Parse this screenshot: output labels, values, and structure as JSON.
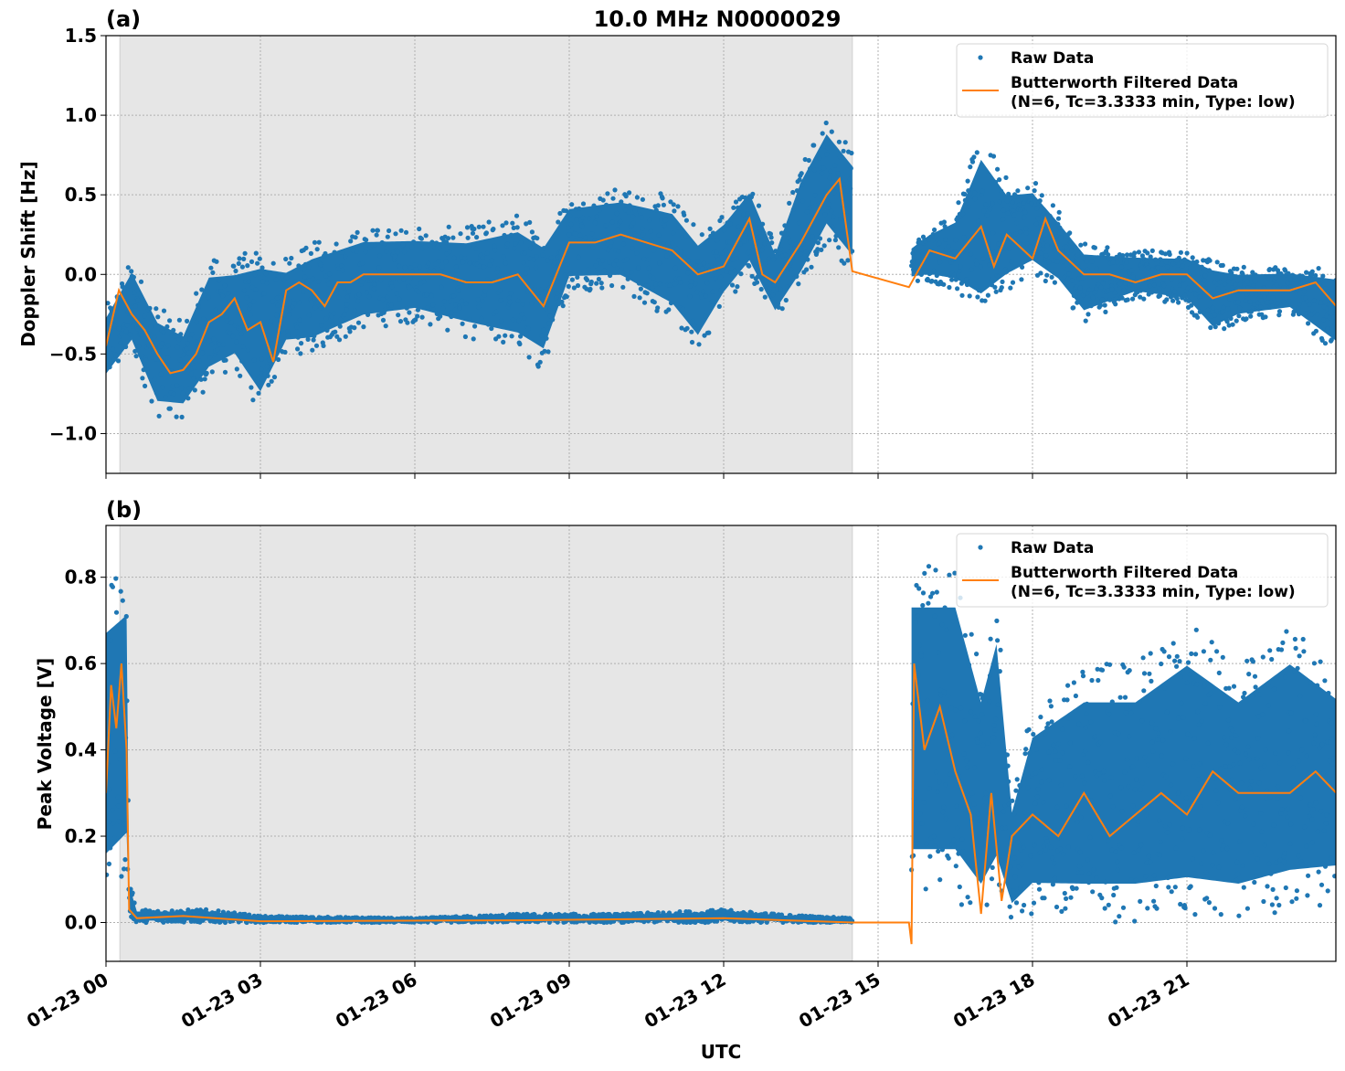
{
  "title": "10.0 MHz N0000029",
  "chart_data": [
    {
      "type": "scatter",
      "panel_label": "(a)",
      "title": "10.0 MHz N0000029",
      "xlabel": "",
      "ylabel": "Doppler Shift [Hz]",
      "x_units": "hours UTC on 01-23",
      "xlim": [
        0,
        23.9
      ],
      "ylim": [
        -1.25,
        1.5
      ],
      "yticks": [
        -1.0,
        -0.5,
        0.0,
        0.5,
        1.0,
        1.5
      ],
      "ytick_labels": [
        "−1.0",
        "−0.5",
        "0.0",
        "0.5",
        "1.0",
        "1.5"
      ],
      "grid": true,
      "legend_position": "top-right",
      "shaded_region_hours": [
        0.27,
        14.5
      ],
      "raw_data": {
        "name": "Raw Data",
        "color": "#1f77b4",
        "segments": [
          {
            "t": [
              0,
              0.5,
              1,
              1.5,
              2,
              2.5,
              3,
              3.5,
              4,
              5,
              6,
              7,
              8,
              8.5,
              9,
              10,
              11,
              11.5,
              12,
              12.5,
              13,
              13.5,
              14,
              14.5
            ],
            "lower": [
              -0.7,
              -0.5,
              -0.9,
              -0.9,
              -0.7,
              -0.6,
              -0.9,
              -0.5,
              -0.5,
              -0.35,
              -0.3,
              -0.4,
              -0.5,
              -0.6,
              -0.1,
              -0.1,
              -0.3,
              -0.5,
              -0.2,
              0.0,
              -0.3,
              -0.1,
              0.2,
              0.0
            ],
            "upper": [
              -0.2,
              0.1,
              -0.2,
              -0.3,
              0.1,
              0.1,
              0.2,
              0.1,
              0.2,
              0.3,
              0.3,
              0.3,
              0.4,
              0.3,
              0.5,
              0.55,
              0.5,
              0.3,
              0.4,
              0.6,
              0.2,
              0.7,
              1.0,
              0.8
            ]
          },
          {
            "t": [
              15.65,
              16,
              16.5,
              17,
              17.5,
              18,
              18.5,
              19,
              20,
              21,
              21.5,
              22,
              23,
              23.9
            ],
            "lower": [
              -0.05,
              -0.05,
              -0.1,
              -0.3,
              -0.1,
              0.0,
              -0.1,
              -0.3,
              -0.15,
              -0.2,
              -0.4,
              -0.3,
              -0.25,
              -0.5
            ],
            "upper": [
              0.2,
              0.3,
              0.4,
              0.9,
              0.6,
              0.6,
              0.4,
              0.2,
              0.15,
              0.15,
              0.1,
              0.05,
              0.05,
              0.05
            ]
          }
        ]
      },
      "filtered": {
        "name": "Butterworth Filtered Data\n(N=6, Tc=3.3333 min, Type: low)",
        "color": "#ff7f0e",
        "t": [
          0,
          0.25,
          0.5,
          0.75,
          1,
          1.25,
          1.5,
          1.75,
          2,
          2.25,
          2.5,
          2.75,
          3,
          3.25,
          3.5,
          3.75,
          4,
          4.25,
          4.5,
          4.75,
          5,
          5.5,
          6,
          6.5,
          7,
          7.5,
          8,
          8.5,
          9,
          9.5,
          10,
          10.5,
          11,
          11.5,
          12,
          12.5,
          12.75,
          13,
          13.5,
          14,
          14.25,
          14.5,
          15.6,
          16,
          16.5,
          17,
          17.25,
          17.5,
          18,
          18.25,
          18.5,
          19,
          19.5,
          20,
          20.5,
          21,
          21.5,
          22,
          22.5,
          23,
          23.5,
          23.9
        ],
        "v": [
          -0.45,
          -0.1,
          -0.25,
          -0.35,
          -0.5,
          -0.62,
          -0.6,
          -0.5,
          -0.3,
          -0.25,
          -0.15,
          -0.35,
          -0.3,
          -0.55,
          -0.1,
          -0.05,
          -0.1,
          -0.2,
          -0.05,
          -0.05,
          0.0,
          0.0,
          0.0,
          0.0,
          -0.05,
          -0.05,
          0.0,
          -0.2,
          0.2,
          0.2,
          0.25,
          0.2,
          0.15,
          0.0,
          0.05,
          0.35,
          0.0,
          -0.05,
          0.2,
          0.5,
          0.6,
          0.02,
          -0.08,
          0.15,
          0.1,
          0.3,
          0.05,
          0.25,
          0.1,
          0.35,
          0.15,
          0.0,
          0.0,
          -0.05,
          0.0,
          0.0,
          -0.15,
          -0.1,
          -0.1,
          -0.1,
          -0.05,
          -0.2
        ]
      }
    },
    {
      "type": "scatter",
      "panel_label": "(b)",
      "xlabel": "UTC",
      "ylabel": "Peak Voltage [V]",
      "x_units": "hours UTC on 01-23",
      "xlim": [
        0,
        23.9
      ],
      "ylim": [
        -0.09,
        0.92
      ],
      "yticks": [
        0.0,
        0.2,
        0.4,
        0.6,
        0.8
      ],
      "ytick_labels": [
        "0.0",
        "0.2",
        "0.4",
        "0.6",
        "0.8"
      ],
      "xticks": [
        0,
        3,
        6,
        9,
        12,
        15,
        18,
        21
      ],
      "xtick_labels": [
        "01-23 00",
        "01-23 03",
        "01-23 06",
        "01-23 09",
        "01-23 12",
        "01-23 15",
        "01-23 18",
        "01-23 21"
      ],
      "grid": true,
      "legend_position": "top-right",
      "shaded_region_hours": [
        0.27,
        14.5
      ],
      "raw_data": {
        "name": "Raw Data",
        "color": "#1f77b4",
        "segments": [
          {
            "t": [
              0,
              0.4,
              0.45,
              0.6,
              2,
              3,
              6,
              8,
              10,
              12,
              13,
              14.5
            ],
            "lower": [
              0.05,
              0.1,
              0.01,
              0.0,
              0.0,
              0.0,
              0.0,
              0.0,
              0.0,
              0.0,
              0.0,
              0.0
            ],
            "upper": [
              0.78,
              0.82,
              0.1,
              0.03,
              0.03,
              0.015,
              0.01,
              0.02,
              0.02,
              0.03,
              0.02,
              0.01
            ]
          },
          {
            "t": [
              15.65,
              16.5,
              17,
              17.3,
              17.6,
              18,
              19,
              20,
              21,
              22,
              23,
              23.9
            ],
            "lower": [
              0.05,
              0.05,
              0.0,
              0.05,
              0.0,
              0.02,
              0.0,
              0.0,
              0.0,
              0.0,
              0.02,
              0.05
            ],
            "upper": [
              0.85,
              0.85,
              0.6,
              0.75,
              0.3,
              0.5,
              0.6,
              0.6,
              0.7,
              0.6,
              0.7,
              0.6
            ]
          }
        ]
      },
      "filtered": {
        "name": "Butterworth Filtered Data\n(N=6, Tc=3.3333 min, Type: low)",
        "color": "#ff7f0e",
        "t": [
          0,
          0.1,
          0.2,
          0.3,
          0.4,
          0.45,
          0.6,
          1.5,
          3,
          8,
          12,
          14.5,
          15.6,
          15.65,
          15.7,
          15.9,
          16.2,
          16.5,
          16.8,
          17.0,
          17.2,
          17.4,
          17.6,
          18,
          18.5,
          19,
          19.5,
          20,
          20.5,
          21,
          21.5,
          22,
          22.5,
          23,
          23.5,
          23.9
        ],
        "v": [
          0.3,
          0.55,
          0.45,
          0.6,
          0.4,
          0.03,
          0.01,
          0.015,
          0.003,
          0.005,
          0.01,
          0.0,
          0.0,
          -0.05,
          0.6,
          0.4,
          0.5,
          0.35,
          0.25,
          0.02,
          0.3,
          0.05,
          0.2,
          0.25,
          0.2,
          0.3,
          0.2,
          0.25,
          0.3,
          0.25,
          0.35,
          0.3,
          0.3,
          0.3,
          0.35,
          0.3
        ]
      }
    }
  ],
  "legend": {
    "raw_label": "Raw Data",
    "filtered_label_line1": "Butterworth Filtered Data",
    "filtered_label_line2": "(N=6, Tc=3.3333 min, Type: low)"
  }
}
